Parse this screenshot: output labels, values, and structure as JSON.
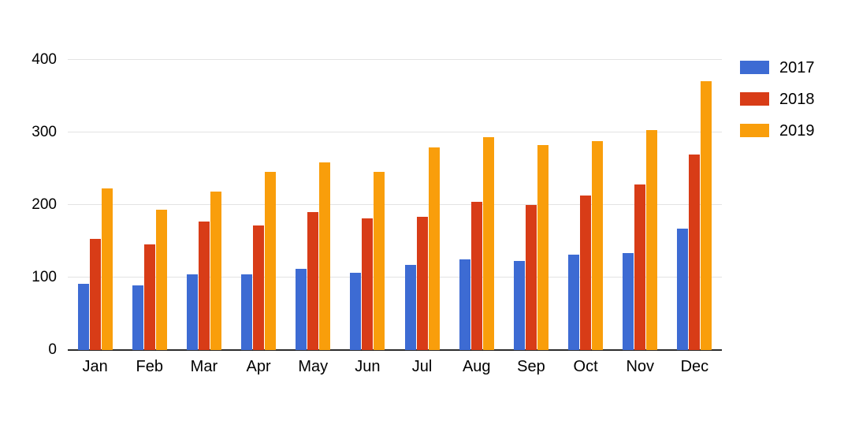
{
  "chart_data": {
    "type": "bar",
    "title": "",
    "categories": [
      "Jan",
      "Feb",
      "Mar",
      "Apr",
      "May",
      "Jun",
      "Jul",
      "Aug",
      "Sep",
      "Oct",
      "Nov",
      "Dec"
    ],
    "series": [
      {
        "name": "2017",
        "color": "#3d6bd3",
        "values": [
          91,
          89,
          104,
          104,
          112,
          107,
          117,
          125,
          123,
          132,
          134,
          167
        ]
      },
      {
        "name": "2018",
        "color": "#d83c17",
        "values": [
          153,
          146,
          177,
          172,
          190,
          182,
          184,
          204,
          200,
          213,
          228,
          270
        ]
      },
      {
        "name": "2019",
        "color": "#f99e0b",
        "values": [
          223,
          193,
          218,
          246,
          259,
          246,
          279,
          294,
          283,
          288,
          303,
          371
        ]
      }
    ],
    "xlabel": "",
    "ylabel": "",
    "ylim": [
      0,
      400
    ],
    "yticks": [
      0,
      100,
      200,
      300,
      400
    ],
    "grid": true,
    "legend_position": "top-right"
  },
  "colors": {
    "background": "#ffffff",
    "gridline": "#e3e3e3",
    "axis_line": "#2b2b2b",
    "text": "#000000"
  }
}
